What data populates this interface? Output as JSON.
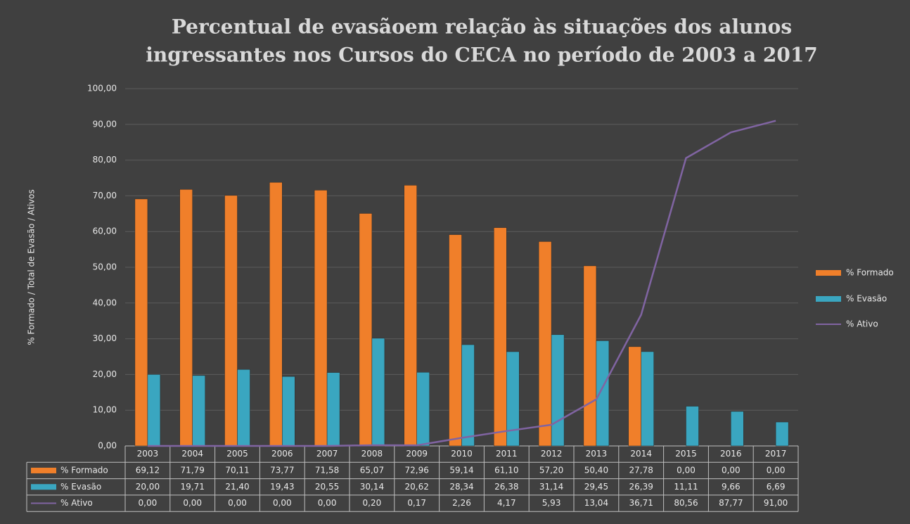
{
  "chart_data": {
    "type": "bar",
    "title": [
      "Percentual de evasãoem relação às situações dos alunos",
      "ingressantes nos  Cursos do CECA no período de 2003 a 2017"
    ],
    "y_label": "% Formado / Total de Evasão / Ativos",
    "categories": [
      "2003",
      "2004",
      "2005",
      "2006",
      "2007",
      "2008",
      "2009",
      "2010",
      "2011",
      "2012",
      "2013",
      "2014",
      "2015",
      "2016",
      "2017"
    ],
    "series": [
      {
        "name": "% Formado",
        "type": "bar",
        "color": "#f07f2a",
        "values": [
          69.12,
          71.79,
          70.11,
          73.77,
          71.58,
          65.07,
          72.96,
          59.14,
          61.1,
          57.2,
          50.4,
          27.78,
          0,
          0,
          0
        ],
        "value_labels": [
          "69,12",
          "71,79",
          "70,11",
          "73,77",
          "71,58",
          "65,07",
          "72,96",
          "59,14",
          "61,10",
          "57,20",
          "50,40",
          "27,78",
          "0,00",
          "0,00",
          "0,00"
        ]
      },
      {
        "name": "% Evasão",
        "type": "bar",
        "color": "#3aa6c0",
        "values": [
          20.0,
          19.71,
          21.4,
          19.43,
          20.55,
          30.14,
          20.62,
          28.34,
          26.38,
          31.14,
          29.45,
          26.39,
          11.11,
          9.66,
          6.69
        ],
        "value_labels": [
          "20,00",
          "19,71",
          "21,40",
          "19,43",
          "20,55",
          "30,14",
          "20,62",
          "28,34",
          "26,38",
          "31,14",
          "29,45",
          "26,39",
          "11,11",
          "9,66",
          "6,69"
        ]
      },
      {
        "name": "% Ativo",
        "type": "line",
        "color": "#8064a2",
        "values": [
          0,
          0,
          0,
          0,
          0,
          0.2,
          0.17,
          2.26,
          4.17,
          5.93,
          13.04,
          36.71,
          80.56,
          87.77,
          91.0
        ],
        "value_labels": [
          "0,00",
          "0,00",
          "0,00",
          "0,00",
          "0,00",
          "0,20",
          "0,17",
          "2,26",
          "4,17",
          "5,93",
          "13,04",
          "36,71",
          "80,56",
          "87,77",
          "91,00"
        ]
      }
    ],
    "ylim": [
      0,
      100
    ],
    "yticks": [
      {
        "value": 0,
        "label": "0,00"
      },
      {
        "value": 10,
        "label": "10,00"
      },
      {
        "value": 20,
        "label": "20,00"
      },
      {
        "value": 30,
        "label": "30,00"
      },
      {
        "value": 40,
        "label": "40,00"
      },
      {
        "value": 50,
        "label": "50,00"
      },
      {
        "value": 60,
        "label": "60,00"
      },
      {
        "value": 70,
        "label": "70,00"
      },
      {
        "value": 80,
        "label": "80,00"
      },
      {
        "value": 90,
        "label": "90,00"
      },
      {
        "value": 100,
        "label": "100,00"
      }
    ],
    "grid": true,
    "legend": "right"
  }
}
